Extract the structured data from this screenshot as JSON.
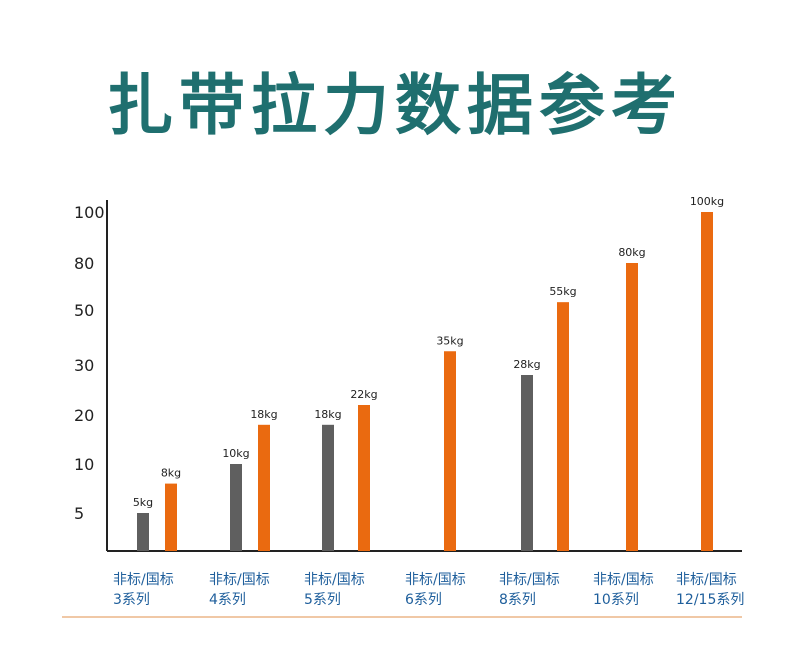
{
  "title": "扎带拉力数据参考",
  "colors": {
    "gray": "#5f5f5f",
    "orange": "#ea6a10",
    "title": "#1f6f6f",
    "group_label": "#1f5f9c",
    "axis": "#222222"
  },
  "chart_data": {
    "type": "bar",
    "title": "扎带拉力数据参考",
    "y_ticks": [
      "5",
      "10",
      "20",
      "30",
      "50",
      "80",
      "100"
    ],
    "categories": [
      [
        "非标/国标",
        "3系列"
      ],
      [
        "非标/国标",
        "4系列"
      ],
      [
        "非标/国标",
        "5系列"
      ],
      [
        "非标/国标",
        "6系列"
      ],
      [
        "非标/国标",
        "8系列"
      ],
      [
        "非标/国标",
        "10系列"
      ],
      [
        "非标/国标",
        "12/15系列"
      ]
    ],
    "series": [
      {
        "values": [
          5,
          10,
          18,
          null,
          28,
          null,
          null
        ],
        "labels": [
          "5kg",
          "10kg",
          "18kg",
          null,
          "28kg",
          null,
          null
        ]
      },
      {
        "values": [
          8,
          18,
          22,
          35,
          55,
          80,
          100
        ],
        "labels": [
          "8kg",
          "18kg",
          "22kg",
          "35kg",
          "55kg",
          "80kg",
          "100kg"
        ]
      }
    ]
  }
}
